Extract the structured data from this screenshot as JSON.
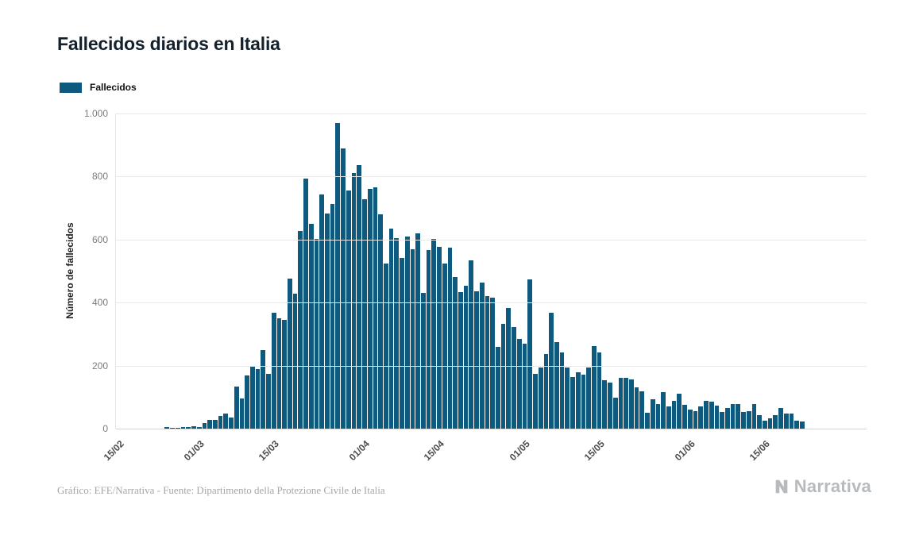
{
  "title": "Fallecidos diarios en Italia",
  "legend": {
    "label": "Fallecidos",
    "color": "#0e5a7e"
  },
  "footer": {
    "credit": "Gráfico: EFE/Narrativa - Fuente: Dipartimento della Protezione Civile de Italia",
    "brand": "Narrativa"
  },
  "chart_data": {
    "type": "bar",
    "title": "Fallecidos diarios en Italia",
    "xlabel": "",
    "ylabel": "Número de fallecidos",
    "ylim": [
      0,
      1000
    ],
    "yticks": [
      0,
      200,
      400,
      600,
      800,
      1000
    ],
    "ytick_labels": [
      "0",
      "200",
      "400",
      "600",
      "800",
      "1.000"
    ],
    "grid": true,
    "legend_position": "top-left",
    "bar_color": "#0e5a7e",
    "x_tick_labels": [
      "15/02",
      "01/03",
      "15/03",
      "01/04",
      "15/04",
      "01/05",
      "15/05",
      "01/06",
      "15/06"
    ],
    "x_tick_indices": [
      0,
      15,
      29,
      46,
      60,
      76,
      90,
      107,
      121
    ],
    "categories": [
      "15/02",
      "16/02",
      "17/02",
      "18/02",
      "19/02",
      "20/02",
      "21/02",
      "22/02",
      "23/02",
      "24/02",
      "25/02",
      "26/02",
      "27/02",
      "28/02",
      "29/02",
      "01/03",
      "02/03",
      "03/03",
      "04/03",
      "05/03",
      "06/03",
      "07/03",
      "08/03",
      "09/03",
      "10/03",
      "11/03",
      "12/03",
      "13/03",
      "14/03",
      "15/03",
      "16/03",
      "17/03",
      "18/03",
      "19/03",
      "20/03",
      "21/03",
      "22/03",
      "23/03",
      "24/03",
      "25/03",
      "26/03",
      "27/03",
      "28/03",
      "29/03",
      "30/03",
      "31/03",
      "01/04",
      "02/04",
      "03/04",
      "04/04",
      "05/04",
      "06/04",
      "07/04",
      "08/04",
      "09/04",
      "10/04",
      "11/04",
      "12/04",
      "13/04",
      "14/04",
      "15/04",
      "16/04",
      "17/04",
      "18/04",
      "19/04",
      "20/04",
      "21/04",
      "22/04",
      "23/04",
      "24/04",
      "25/04",
      "26/04",
      "27/04",
      "28/04",
      "29/04",
      "30/04",
      "01/05",
      "02/05",
      "03/05",
      "04/05",
      "05/05",
      "06/05",
      "07/05",
      "08/05",
      "09/05",
      "10/05",
      "11/05",
      "12/05",
      "13/05",
      "14/05",
      "15/05",
      "16/05",
      "17/05",
      "18/05",
      "19/05",
      "20/05",
      "21/05",
      "22/05",
      "23/05",
      "24/05",
      "25/05",
      "26/05",
      "27/05",
      "28/05",
      "29/05",
      "30/05",
      "31/05",
      "01/06",
      "02/06",
      "03/06",
      "04/06",
      "05/06",
      "06/06",
      "07/06",
      "08/06",
      "09/06",
      "10/06",
      "11/06",
      "12/06",
      "13/06",
      "14/06",
      "15/06",
      "16/06",
      "17/06",
      "18/06",
      "19/06",
      "20/06",
      "21/06",
      "22/06"
    ],
    "series": [
      {
        "name": "Fallecidos",
        "values": [
          0,
          0,
          0,
          0,
          0,
          0,
          1,
          1,
          1,
          4,
          3,
          2,
          5,
          4,
          8,
          5,
          18,
          27,
          28,
          41,
          49,
          36,
          133,
          97,
          168,
          196,
          189,
          250,
          175,
          368,
          349,
          345,
          475,
          427,
          627,
          793,
          651,
          601,
          743,
          683,
          712,
          969,
          889,
          756,
          812,
          837,
          727,
          760,
          766,
          681,
          525,
          636,
          604,
          542,
          610,
          570,
          619,
          431,
          566,
          602,
          578,
          525,
          575,
          482,
          433,
          454,
          534,
          437,
          464,
          420,
          415,
          260,
          333,
          382,
          323,
          285,
          269,
          474,
          174,
          195,
          236,
          369,
          274,
          243,
          194,
          165,
          179,
          172,
          195,
          262,
          242,
          153,
          145,
          99,
          162,
          161,
          156,
          130,
          119,
          50,
          92,
          78,
          117,
          70,
          87,
          111,
          75,
          60,
          55,
          71,
          88,
          85,
          72,
          53,
          65,
          79,
          79,
          53,
          56,
          78,
          44,
          26,
          34,
          43,
          66,
          47,
          49,
          24,
          23
        ]
      }
    ]
  }
}
